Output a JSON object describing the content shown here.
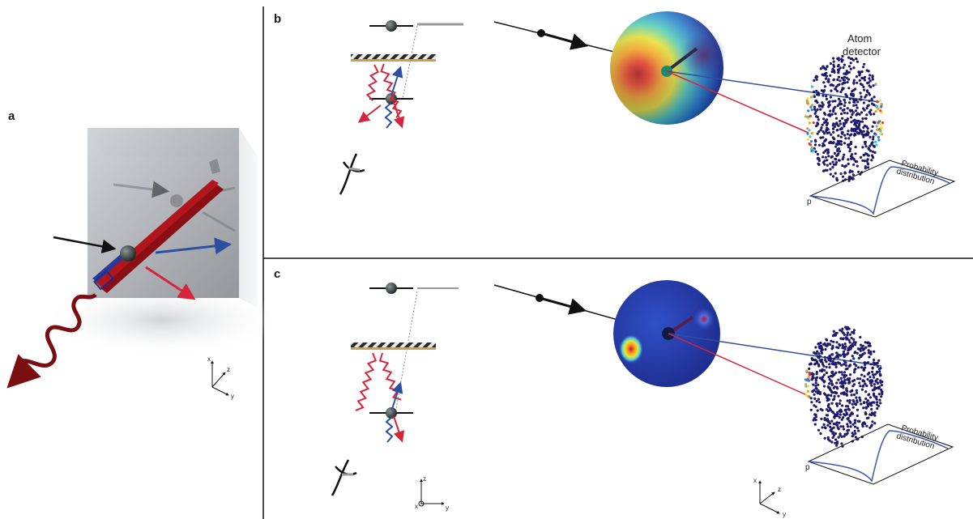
{
  "panels": {
    "a": {
      "label": "a",
      "axes": {
        "x": "x",
        "y": "y",
        "z": "z"
      }
    },
    "b": {
      "label": "b",
      "detector_label_line1": "Atom",
      "detector_label_line2": "detector",
      "prob_label_line1": "Probability",
      "prob_label_line2": "distribution",
      "p_label": "p"
    },
    "c": {
      "label": "c",
      "prob_label_line1": "Probability",
      "prob_label_line2": "distribution",
      "p_label": "p",
      "axes_left": {
        "x": "x",
        "y": "y",
        "z": "z"
      },
      "axes_right": {
        "x": "x",
        "y": "y",
        "z": "z"
      }
    }
  },
  "colors": {
    "red": "#d8243a",
    "blue": "#2c4fa0",
    "detector_dots": "#1f1a6b",
    "mirror_gold": "#c9a24a",
    "wave_dark_red": "#7a0f12",
    "divider": "#111111"
  }
}
